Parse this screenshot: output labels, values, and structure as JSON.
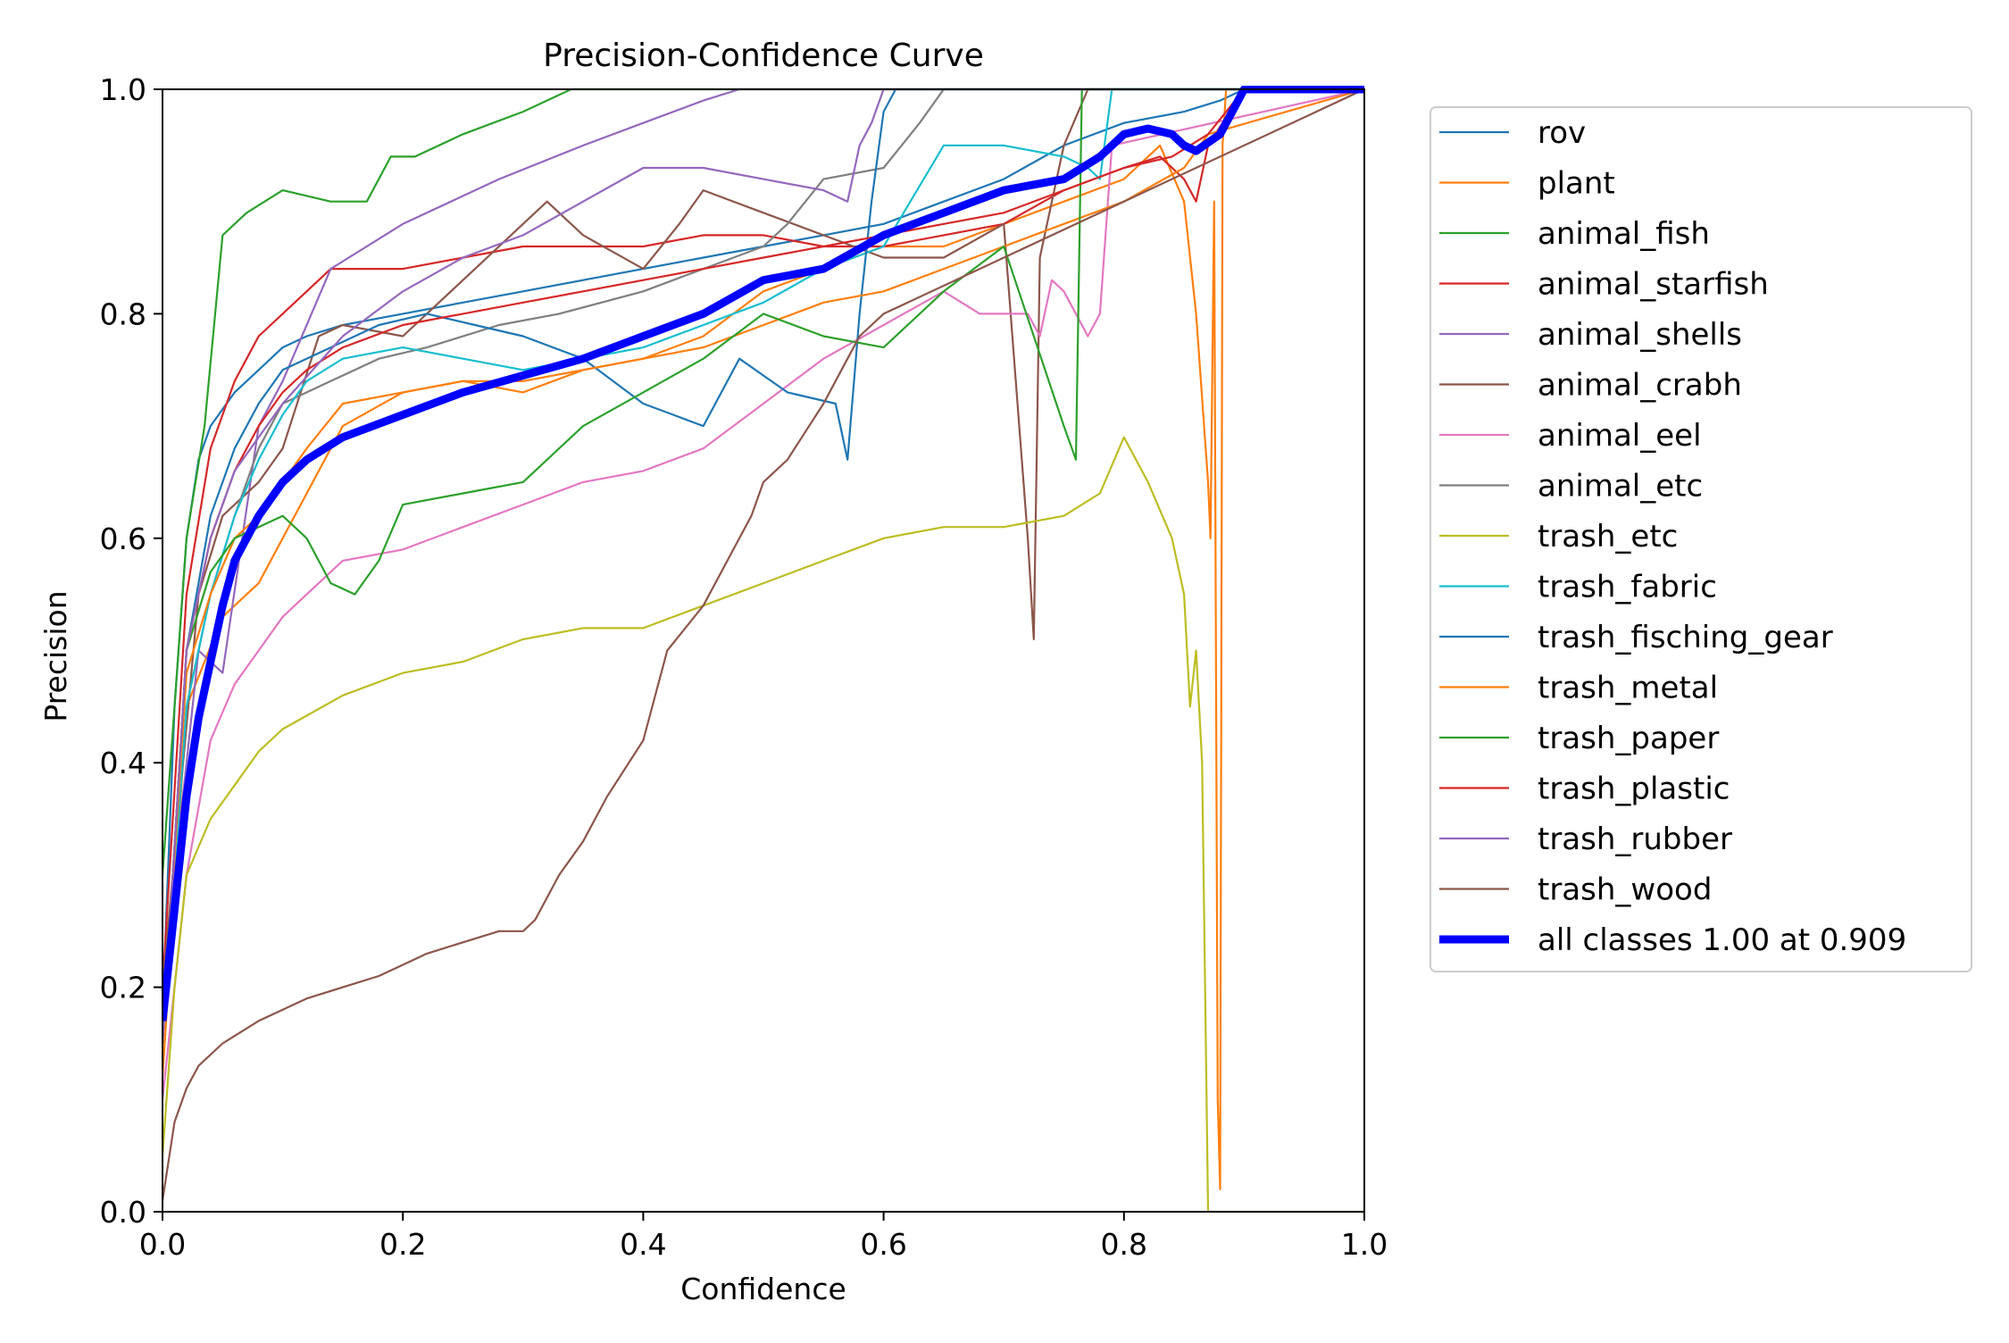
{
  "chart_data": {
    "type": "line",
    "title": "Precision-Confidence Curve",
    "xlabel": "Confidence",
    "ylabel": "Precision",
    "xlim": [
      0,
      1
    ],
    "ylim": [
      0,
      1
    ],
    "xticks": [
      "0.0",
      "0.2",
      "0.4",
      "0.6",
      "0.8",
      "1.0"
    ],
    "yticks": [
      "0.0",
      "0.2",
      "0.4",
      "0.6",
      "0.8",
      "1.0"
    ],
    "grid": false,
    "legend_position": "outside-right",
    "series": [
      {
        "name": "rov",
        "color": "#1f77b4",
        "width": "thin",
        "x": [
          0.0,
          0.01,
          0.02,
          0.03,
          0.04,
          0.06,
          0.08,
          0.1,
          0.12,
          0.15,
          0.2,
          0.25,
          0.3,
          0.35,
          0.4,
          0.45,
          0.5,
          0.55,
          0.6,
          0.65,
          0.7,
          0.75,
          0.8,
          0.85,
          0.88,
          0.9,
          1.0
        ],
        "y": [
          0.18,
          0.45,
          0.6,
          0.67,
          0.7,
          0.73,
          0.75,
          0.77,
          0.78,
          0.79,
          0.8,
          0.81,
          0.82,
          0.83,
          0.84,
          0.85,
          0.86,
          0.87,
          0.88,
          0.9,
          0.92,
          0.95,
          0.97,
          0.98,
          0.99,
          1.0,
          1.0
        ]
      },
      {
        "name": "plant",
        "color": "#ff7f0e",
        "width": "thin",
        "x": [
          0.0,
          0.02,
          0.05,
          0.08,
          0.1,
          0.15,
          0.2,
          0.25,
          0.3,
          0.35,
          0.4,
          0.45,
          0.5,
          0.55,
          0.6,
          0.65,
          0.7,
          0.75,
          0.8,
          0.83,
          0.85,
          0.86,
          0.87,
          0.872,
          0.875,
          0.878,
          0.88,
          0.882,
          0.885,
          0.89,
          1.0
        ],
        "y": [
          0.12,
          0.45,
          0.53,
          0.56,
          0.6,
          0.7,
          0.73,
          0.74,
          0.73,
          0.75,
          0.76,
          0.78,
          0.82,
          0.84,
          0.86,
          0.86,
          0.88,
          0.9,
          0.92,
          0.95,
          0.9,
          0.8,
          0.65,
          0.6,
          0.9,
          0.1,
          0.02,
          0.95,
          1.0,
          1.0,
          1.0
        ]
      },
      {
        "name": "animal_fish",
        "color": "#2ca02c",
        "width": "thin",
        "x": [
          0.0,
          0.02,
          0.035,
          0.05,
          0.07,
          0.1,
          0.14,
          0.17,
          0.19,
          0.21,
          0.25,
          0.3,
          0.34,
          1.0
        ],
        "y": [
          0.3,
          0.6,
          0.7,
          0.87,
          0.89,
          0.91,
          0.9,
          0.9,
          0.94,
          0.94,
          0.96,
          0.98,
          1.0,
          1.0
        ]
      },
      {
        "name": "animal_starfish",
        "color": "#d62728",
        "width": "thin",
        "x": [
          0.0,
          0.02,
          0.04,
          0.06,
          0.08,
          0.1,
          0.12,
          0.14,
          0.16,
          0.2,
          0.25,
          0.3,
          0.35,
          0.4,
          0.45,
          0.5,
          0.55,
          0.6,
          0.65,
          0.7,
          0.75,
          0.8,
          0.83,
          0.85,
          0.86,
          0.87,
          0.9,
          1.0
        ],
        "y": [
          0.2,
          0.55,
          0.68,
          0.74,
          0.78,
          0.8,
          0.82,
          0.84,
          0.84,
          0.84,
          0.85,
          0.86,
          0.86,
          0.86,
          0.87,
          0.87,
          0.86,
          0.86,
          0.87,
          0.88,
          0.91,
          0.93,
          0.94,
          0.92,
          0.9,
          0.95,
          1.0,
          1.0
        ]
      },
      {
        "name": "animal_shells",
        "color": "#9467bd",
        "width": "thin",
        "x": [
          0.0,
          0.03,
          0.05,
          0.08,
          0.1,
          0.14,
          0.2,
          0.28,
          0.35,
          0.4,
          0.45,
          0.48,
          1.0
        ],
        "y": [
          0.2,
          0.5,
          0.48,
          0.7,
          0.74,
          0.84,
          0.88,
          0.92,
          0.95,
          0.97,
          0.99,
          1.0,
          1.0
        ]
      },
      {
        "name": "animal_crabh",
        "color": "#8c564b",
        "width": "thin",
        "x": [
          0.0,
          0.03,
          0.05,
          0.08,
          0.1,
          0.13,
          0.15,
          0.2,
          0.25,
          0.3,
          0.32,
          0.35,
          0.4,
          0.43,
          0.45,
          0.5,
          0.55,
          0.6,
          0.65,
          0.7,
          0.72,
          0.725,
          0.73,
          0.75,
          0.77,
          0.78,
          1.0
        ],
        "y": [
          0.2,
          0.55,
          0.62,
          0.65,
          0.68,
          0.78,
          0.79,
          0.78,
          0.83,
          0.88,
          0.9,
          0.87,
          0.84,
          0.88,
          0.91,
          0.89,
          0.87,
          0.85,
          0.85,
          0.88,
          0.6,
          0.51,
          0.85,
          0.95,
          1.0,
          1.0,
          1.0
        ]
      },
      {
        "name": "animal_eel",
        "color": "#e377c2",
        "width": "thin",
        "x": [
          0.0,
          0.02,
          0.04,
          0.06,
          0.08,
          0.1,
          0.12,
          0.15,
          0.2,
          0.25,
          0.3,
          0.35,
          0.4,
          0.45,
          0.5,
          0.55,
          0.6,
          0.65,
          0.68,
          0.7,
          0.72,
          0.73,
          0.74,
          0.75,
          0.77,
          0.78,
          0.79,
          1.0
        ],
        "y": [
          0.1,
          0.3,
          0.42,
          0.47,
          0.5,
          0.53,
          0.55,
          0.58,
          0.59,
          0.61,
          0.63,
          0.65,
          0.66,
          0.68,
          0.72,
          0.76,
          0.79,
          0.82,
          0.8,
          0.8,
          0.8,
          0.78,
          0.83,
          0.82,
          0.78,
          0.8,
          0.95,
          1.0
        ]
      },
      {
        "name": "animal_etc",
        "color": "#7f7f7f",
        "width": "thin",
        "x": [
          0.0,
          0.02,
          0.04,
          0.06,
          0.08,
          0.1,
          0.14,
          0.18,
          0.22,
          0.28,
          0.33,
          0.4,
          0.45,
          0.5,
          0.52,
          0.55,
          0.6,
          0.63,
          0.65,
          0.7,
          0.75,
          1.0
        ],
        "y": [
          0.15,
          0.45,
          0.55,
          0.62,
          0.68,
          0.72,
          0.74,
          0.76,
          0.77,
          0.79,
          0.8,
          0.82,
          0.84,
          0.86,
          0.88,
          0.92,
          0.93,
          0.97,
          1.0,
          1.0,
          1.0,
          1.0
        ]
      },
      {
        "name": "trash_etc",
        "color": "#bcbd22",
        "width": "thin",
        "x": [
          0.0,
          0.01,
          0.02,
          0.04,
          0.06,
          0.08,
          0.1,
          0.15,
          0.2,
          0.25,
          0.3,
          0.35,
          0.4,
          0.45,
          0.5,
          0.55,
          0.6,
          0.65,
          0.7,
          0.75,
          0.78,
          0.8,
          0.82,
          0.84,
          0.85,
          0.855,
          0.86,
          0.865,
          0.87,
          0.875,
          1.0
        ],
        "y": [
          0.05,
          0.2,
          0.3,
          0.35,
          0.38,
          0.41,
          0.43,
          0.46,
          0.48,
          0.49,
          0.51,
          0.52,
          0.52,
          0.54,
          0.56,
          0.58,
          0.6,
          0.61,
          0.61,
          0.62,
          0.64,
          0.69,
          0.65,
          0.6,
          0.55,
          0.45,
          0.5,
          0.4,
          0.0,
          0.0,
          0.0
        ]
      },
      {
        "name": "trash_fabric",
        "color": "#17becf",
        "width": "thin",
        "x": [
          0.0,
          0.02,
          0.04,
          0.06,
          0.08,
          0.1,
          0.12,
          0.15,
          0.2,
          0.25,
          0.3,
          0.35,
          0.4,
          0.45,
          0.5,
          0.55,
          0.6,
          0.65,
          0.7,
          0.75,
          0.77,
          0.78,
          0.79,
          1.0
        ],
        "y": [
          0.15,
          0.45,
          0.55,
          0.62,
          0.67,
          0.71,
          0.74,
          0.76,
          0.77,
          0.76,
          0.75,
          0.76,
          0.77,
          0.79,
          0.81,
          0.84,
          0.86,
          0.95,
          0.95,
          0.94,
          0.93,
          0.92,
          1.0,
          1.0
        ]
      },
      {
        "name": "trash_fisching_gear",
        "color": "#1f77b4",
        "width": "thin",
        "x": [
          0.0,
          0.02,
          0.04,
          0.06,
          0.08,
          0.1,
          0.14,
          0.18,
          0.22,
          0.26,
          0.3,
          0.35,
          0.4,
          0.45,
          0.48,
          0.52,
          0.56,
          0.57,
          0.58,
          0.59,
          0.6,
          0.61,
          0.62,
          1.0
        ],
        "y": [
          0.15,
          0.5,
          0.62,
          0.68,
          0.72,
          0.75,
          0.77,
          0.79,
          0.8,
          0.79,
          0.78,
          0.76,
          0.72,
          0.7,
          0.76,
          0.73,
          0.72,
          0.67,
          0.8,
          0.9,
          0.98,
          1.0,
          1.0,
          1.0
        ]
      },
      {
        "name": "trash_metal",
        "color": "#ff7f0e",
        "width": "thin",
        "x": [
          0.0,
          0.02,
          0.04,
          0.06,
          0.08,
          0.1,
          0.12,
          0.15,
          0.2,
          0.25,
          0.3,
          0.35,
          0.4,
          0.45,
          0.5,
          0.55,
          0.6,
          0.65,
          0.7,
          0.75,
          0.8,
          0.85,
          0.87,
          1.0
        ],
        "y": [
          0.15,
          0.48,
          0.55,
          0.6,
          0.62,
          0.65,
          0.68,
          0.72,
          0.73,
          0.74,
          0.74,
          0.75,
          0.76,
          0.77,
          0.79,
          0.81,
          0.82,
          0.84,
          0.86,
          0.88,
          0.9,
          0.93,
          0.96,
          1.0
        ]
      },
      {
        "name": "trash_paper",
        "color": "#2ca02c",
        "width": "thin",
        "x": [
          0.0,
          0.02,
          0.04,
          0.06,
          0.08,
          0.1,
          0.12,
          0.14,
          0.16,
          0.18,
          0.2,
          0.25,
          0.3,
          0.35,
          0.4,
          0.45,
          0.5,
          0.55,
          0.6,
          0.65,
          0.7,
          0.75,
          0.76,
          0.765,
          1.0
        ],
        "y": [
          0.15,
          0.5,
          0.57,
          0.6,
          0.61,
          0.62,
          0.6,
          0.56,
          0.55,
          0.58,
          0.63,
          0.64,
          0.65,
          0.7,
          0.73,
          0.76,
          0.8,
          0.78,
          0.77,
          0.82,
          0.86,
          0.7,
          0.67,
          1.0,
          1.0
        ]
      },
      {
        "name": "trash_plastic",
        "color": "#d62728",
        "width": "thin",
        "x": [
          0.0,
          0.02,
          0.04,
          0.06,
          0.08,
          0.1,
          0.12,
          0.15,
          0.2,
          0.25,
          0.3,
          0.35,
          0.4,
          0.45,
          0.5,
          0.55,
          0.6,
          0.65,
          0.7,
          0.75,
          0.8,
          0.84,
          0.87,
          0.9,
          1.0
        ],
        "y": [
          0.15,
          0.5,
          0.6,
          0.66,
          0.7,
          0.73,
          0.75,
          0.77,
          0.79,
          0.8,
          0.81,
          0.82,
          0.83,
          0.84,
          0.85,
          0.86,
          0.87,
          0.88,
          0.89,
          0.91,
          0.93,
          0.94,
          0.96,
          1.0,
          1.0
        ]
      },
      {
        "name": "trash_rubber",
        "color": "#9467bd",
        "width": "thin",
        "x": [
          0.0,
          0.02,
          0.04,
          0.06,
          0.1,
          0.15,
          0.2,
          0.25,
          0.3,
          0.35,
          0.4,
          0.45,
          0.5,
          0.55,
          0.57,
          0.58,
          0.59,
          0.6,
          1.0
        ],
        "y": [
          0.15,
          0.5,
          0.6,
          0.66,
          0.72,
          0.78,
          0.82,
          0.85,
          0.87,
          0.9,
          0.93,
          0.93,
          0.92,
          0.91,
          0.9,
          0.95,
          0.97,
          1.0,
          1.0
        ]
      },
      {
        "name": "trash_wood",
        "color": "#8c564b",
        "width": "thin",
        "x": [
          0.0,
          0.01,
          0.02,
          0.03,
          0.05,
          0.08,
          0.1,
          0.12,
          0.15,
          0.18,
          0.2,
          0.22,
          0.25,
          0.28,
          0.3,
          0.31,
          0.33,
          0.35,
          0.37,
          0.4,
          0.42,
          0.45,
          0.47,
          0.49,
          0.5,
          0.52,
          0.55,
          0.57,
          0.58,
          0.6,
          1.0
        ],
        "y": [
          0.01,
          0.08,
          0.11,
          0.13,
          0.15,
          0.17,
          0.18,
          0.19,
          0.2,
          0.21,
          0.22,
          0.23,
          0.24,
          0.25,
          0.25,
          0.26,
          0.3,
          0.33,
          0.37,
          0.42,
          0.5,
          0.54,
          0.58,
          0.62,
          0.65,
          0.67,
          0.72,
          0.76,
          0.78,
          0.8,
          1.0
        ]
      },
      {
        "name": "all classes 1.00 at 0.909",
        "color": "#0000ff",
        "width": "thick",
        "x": [
          0.0,
          0.01,
          0.02,
          0.03,
          0.04,
          0.05,
          0.06,
          0.08,
          0.1,
          0.12,
          0.15,
          0.2,
          0.25,
          0.3,
          0.35,
          0.4,
          0.45,
          0.5,
          0.55,
          0.6,
          0.65,
          0.7,
          0.75,
          0.78,
          0.8,
          0.82,
          0.84,
          0.85,
          0.86,
          0.88,
          0.9,
          0.909,
          1.0
        ],
        "y": [
          0.17,
          0.27,
          0.37,
          0.44,
          0.49,
          0.54,
          0.58,
          0.62,
          0.65,
          0.67,
          0.69,
          0.71,
          0.73,
          0.745,
          0.76,
          0.78,
          0.8,
          0.83,
          0.84,
          0.87,
          0.89,
          0.91,
          0.92,
          0.94,
          0.96,
          0.965,
          0.96,
          0.95,
          0.945,
          0.96,
          1.0,
          1.0,
          1.0
        ]
      }
    ]
  }
}
